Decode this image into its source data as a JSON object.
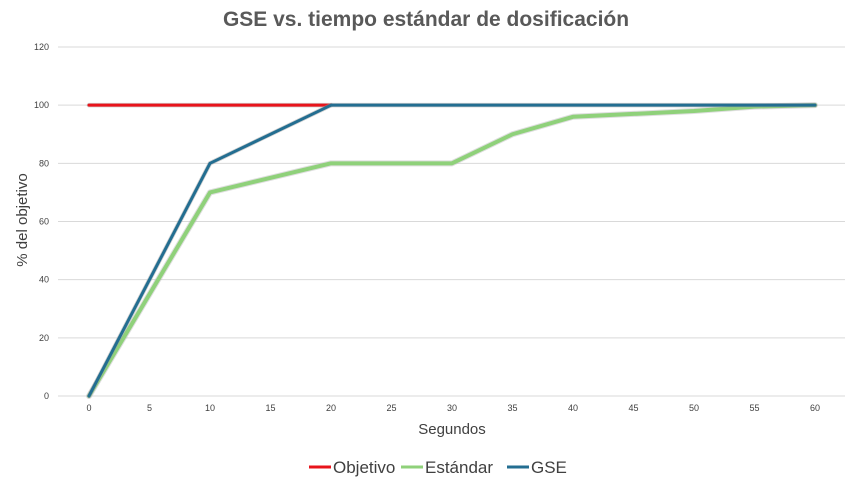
{
  "chart_data": {
    "type": "line",
    "title": "GSE vs. tiempo estándar de dosificación",
    "xlabel": "Segundos",
    "ylabel": "% del objetivo",
    "xlim": [
      0,
      60
    ],
    "ylim": [
      0,
      120
    ],
    "x_ticks": [
      "0",
      "5",
      "10",
      "15",
      "20",
      "25",
      "30",
      "35",
      "40",
      "45",
      "50",
      "55",
      "60"
    ],
    "y_ticks": [
      "0",
      "20",
      "40",
      "60",
      "80",
      "100",
      "120"
    ],
    "grid": true,
    "legend_position": "bottom",
    "series": [
      {
        "name": "Objetivo",
        "color": "#e8141b",
        "x": [
          0,
          20
        ],
        "y": [
          100,
          100
        ]
      },
      {
        "name": "Estándar",
        "color": "#8fd17a",
        "x": [
          0,
          10,
          20,
          30,
          35,
          40,
          50,
          55,
          60
        ],
        "y": [
          0,
          70,
          80,
          80,
          90,
          96,
          98,
          99.5,
          100
        ]
      },
      {
        "name": "GSE",
        "color": "#236e91",
        "x": [
          0,
          10,
          20,
          60
        ],
        "y": [
          0,
          80,
          100,
          100
        ]
      }
    ]
  }
}
